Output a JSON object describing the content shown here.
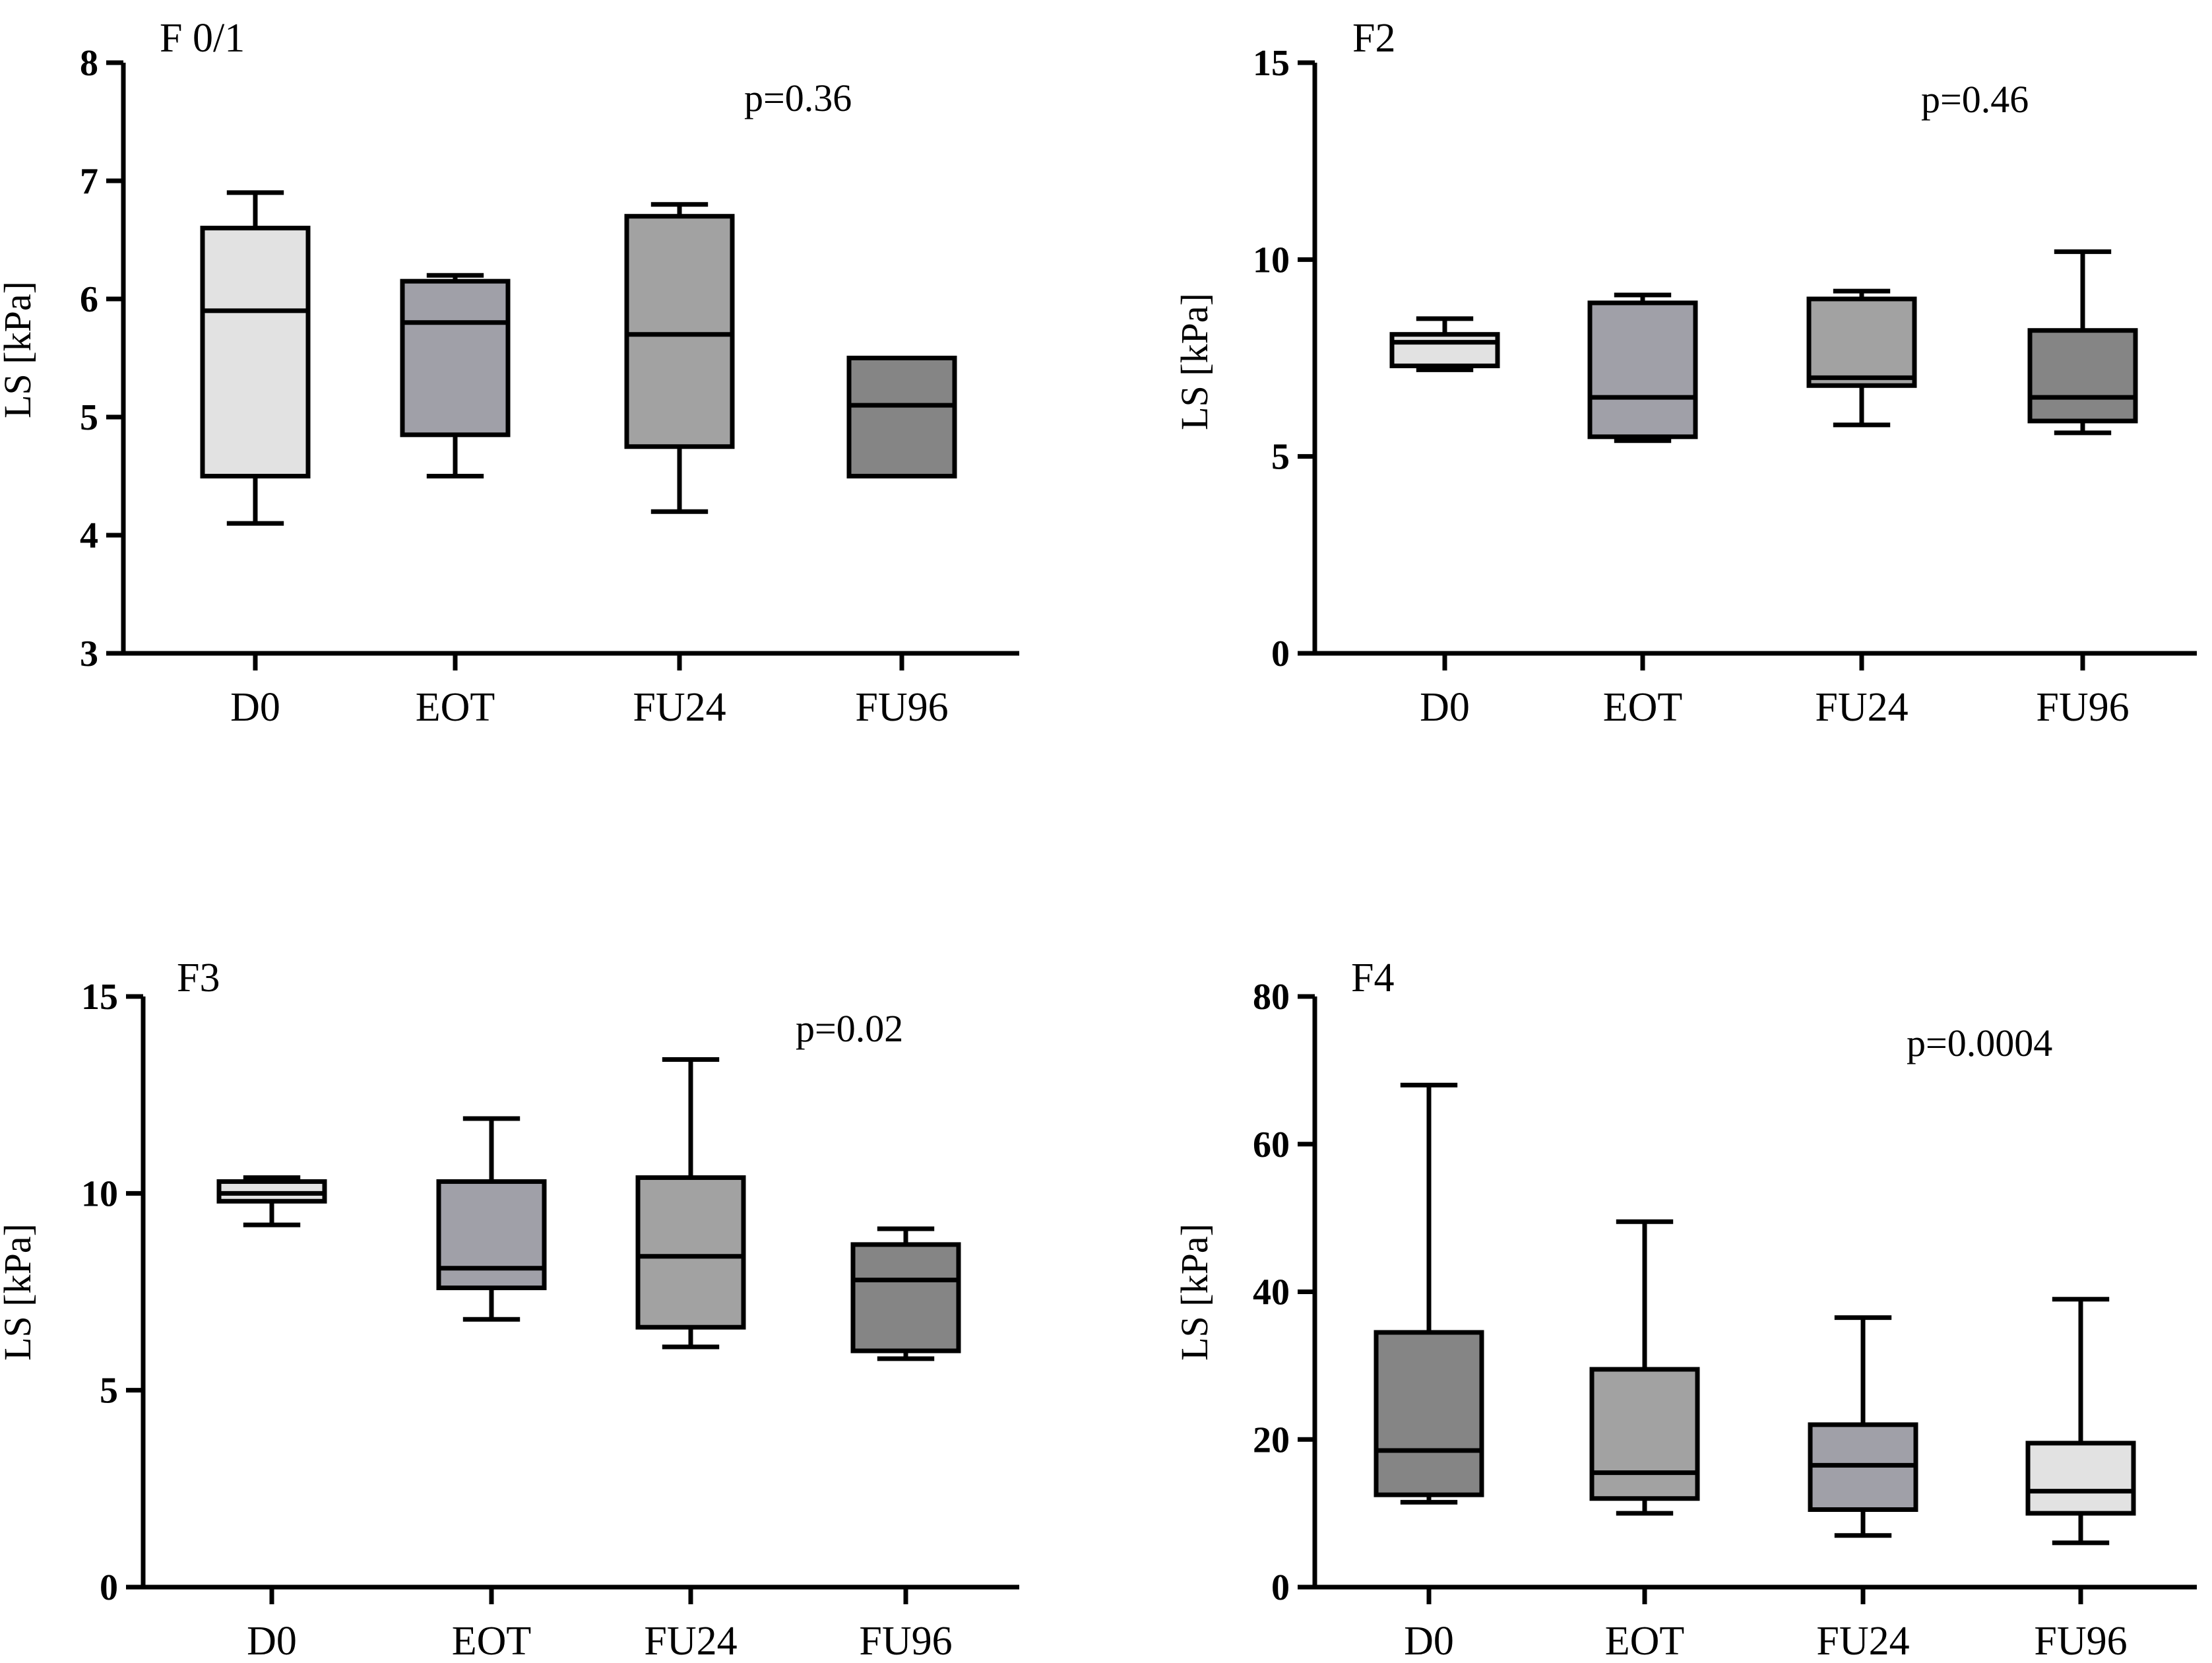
{
  "chart_data": [
    {
      "type": "box",
      "title": "F 0/1",
      "p_value": "p=0.36",
      "ylabel": "LS [kPa]",
      "xlabel": "",
      "ylim": [
        3,
        8
      ],
      "yticks": [
        "3",
        "4",
        "5",
        "6",
        "7",
        "8"
      ],
      "categories": [
        "D0",
        "EOT",
        "FU24",
        "FU96"
      ],
      "boxes": [
        {
          "category": "D0",
          "min": 4.1,
          "q1": 4.5,
          "median": 5.9,
          "q3": 6.6,
          "max": 6.9,
          "fill": "#e2e2e2"
        },
        {
          "category": "EOT",
          "min": 4.5,
          "q1": 4.85,
          "median": 5.8,
          "q3": 6.15,
          "max": 6.2,
          "fill": "#a0a0a8"
        },
        {
          "category": "FU24",
          "min": 4.2,
          "q1": 4.75,
          "median": 5.7,
          "q3": 6.7,
          "max": 6.8,
          "fill": "#a2a2a2"
        },
        {
          "category": "FU96",
          "min": 4.5,
          "q1": 4.5,
          "median": 5.1,
          "q3": 5.5,
          "max": 5.5,
          "fill": "#858585"
        }
      ]
    },
    {
      "type": "box",
      "title": "F2",
      "p_value": "p=0.46",
      "ylabel": "LS [kPa]",
      "xlabel": "",
      "ylim": [
        0,
        15
      ],
      "yticks": [
        "0",
        "5",
        "10",
        "15"
      ],
      "categories": [
        "D0",
        "EOT",
        "FU24",
        "FU96"
      ],
      "boxes": [
        {
          "category": "D0",
          "min": 7.2,
          "q1": 7.3,
          "median": 7.9,
          "q3": 8.1,
          "max": 8.5,
          "fill": "#e2e2e2"
        },
        {
          "category": "EOT",
          "min": 5.4,
          "q1": 5.5,
          "median": 6.5,
          "q3": 8.9,
          "max": 9.1,
          "fill": "#a0a0a8"
        },
        {
          "category": "FU24",
          "min": 5.8,
          "q1": 6.8,
          "median": 7.0,
          "q3": 9.0,
          "max": 9.2,
          "fill": "#a2a2a2"
        },
        {
          "category": "FU96",
          "min": 5.6,
          "q1": 5.9,
          "median": 6.5,
          "q3": 8.2,
          "max": 10.2,
          "fill": "#858585"
        }
      ]
    },
    {
      "type": "box",
      "title": "F3",
      "p_value": "p=0.02",
      "ylabel": "LS [kPa]",
      "xlabel": "",
      "ylim": [
        0,
        15
      ],
      "yticks": [
        "0",
        "5",
        "10",
        "15"
      ],
      "categories": [
        "D0",
        "EOT",
        "FU24",
        "FU96"
      ],
      "boxes": [
        {
          "category": "D0",
          "min": 9.2,
          "q1": 9.8,
          "median": 10.0,
          "q3": 10.3,
          "max": 10.4,
          "fill": "#e2e2e2"
        },
        {
          "category": "EOT",
          "min": 6.8,
          "q1": 7.6,
          "median": 8.1,
          "q3": 10.3,
          "max": 11.9,
          "fill": "#a0a0a8"
        },
        {
          "category": "FU24",
          "min": 6.1,
          "q1": 6.6,
          "median": 8.4,
          "q3": 10.4,
          "max": 13.4,
          "fill": "#a2a2a2"
        },
        {
          "category": "FU96",
          "min": 5.8,
          "q1": 6.0,
          "median": 7.8,
          "q3": 8.7,
          "max": 9.1,
          "fill": "#858585"
        }
      ]
    },
    {
      "type": "box",
      "title": "F4",
      "p_value": "p=0.0004",
      "ylabel": "LS [kPa]",
      "xlabel": "",
      "ylim": [
        0,
        80
      ],
      "yticks": [
        "0",
        "20",
        "40",
        "60",
        "80"
      ],
      "categories": [
        "D0",
        "EOT",
        "FU24",
        "FU96"
      ],
      "boxes": [
        {
          "category": "D0",
          "min": 11.5,
          "q1": 12.5,
          "median": 18.5,
          "q3": 34.5,
          "max": 68.0,
          "fill": "#858585"
        },
        {
          "category": "EOT",
          "min": 10.0,
          "q1": 12.0,
          "median": 15.5,
          "q3": 29.5,
          "max": 49.5,
          "fill": "#a2a2a2"
        },
        {
          "category": "FU24",
          "min": 7.0,
          "q1": 10.5,
          "median": 16.5,
          "q3": 22.0,
          "max": 36.5,
          "fill": "#a0a0a8"
        },
        {
          "category": "FU96",
          "min": 6.0,
          "q1": 10.0,
          "median": 13.0,
          "q3": 19.5,
          "max": 39.0,
          "fill": "#e2e2e2"
        }
      ]
    }
  ]
}
